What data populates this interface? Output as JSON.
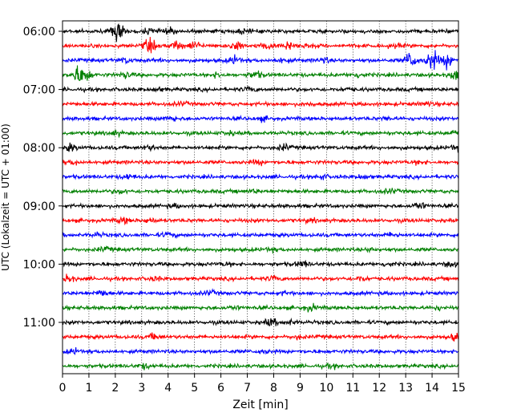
{
  "chart_data": {
    "type": "line",
    "title": "",
    "xlabel": "Zeit  [min]",
    "ylabel": "UTC (Lokalzeit = UTC + 01:00)",
    "xlim": [
      0,
      15
    ],
    "x_ticks": [
      "0",
      "1",
      "2",
      "3",
      "4",
      "5",
      "6",
      "7",
      "8",
      "9",
      "10",
      "11",
      "12",
      "13",
      "14",
      "15"
    ],
    "y_ticks": [
      "06:00",
      "07:00",
      "08:00",
      "09:00",
      "10:00",
      "11:00"
    ],
    "grid": {
      "x": true,
      "y": false,
      "style": "dotted"
    },
    "colors": [
      "#000000",
      "#ff0000",
      "#0000ff",
      "#008000"
    ],
    "series": [
      {
        "start": "06:00",
        "color": "#000000",
        "bursts": [
          [
            2.1,
            2.2
          ],
          [
            3.3,
            0.5
          ],
          [
            4.0,
            0.6
          ],
          [
            6.9,
            0.5
          ]
        ]
      },
      {
        "start": "06:15",
        "color": "#ff0000",
        "bursts": [
          [
            3.3,
            1.4
          ],
          [
            4.3,
            1.0
          ],
          [
            5.0,
            0.9
          ],
          [
            6.6,
            1.0
          ],
          [
            7.7,
            0.7
          ],
          [
            8.5,
            1.1
          ],
          [
            9.3,
            0.4
          ],
          [
            12.6,
            0.4
          ]
        ]
      },
      {
        "start": "06:30",
        "color": "#0000ff",
        "bursts": [
          [
            2.4,
            0.5
          ],
          [
            6.5,
            0.8
          ],
          [
            8.3,
            0.5
          ],
          [
            9.9,
            0.5
          ],
          [
            13.2,
            1.9
          ],
          [
            14.0,
            2.2
          ],
          [
            14.6,
            1.5
          ]
        ]
      },
      {
        "start": "06:45",
        "color": "#008000",
        "bursts": [
          [
            0.6,
            1.8
          ],
          [
            0.9,
            1.2
          ],
          [
            2.4,
            0.6
          ],
          [
            5.9,
            0.5
          ],
          [
            7.3,
            0.8
          ],
          [
            11.2,
            0.6
          ],
          [
            14.9,
            1.2
          ]
        ]
      },
      {
        "start": "07:00",
        "color": "#000000",
        "bursts": [
          [
            3.6,
            0.4
          ],
          [
            7.1,
            0.4
          ],
          [
            10.8,
            0.3
          ]
        ]
      },
      {
        "start": "07:15",
        "color": "#ff0000",
        "bursts": [
          [
            4.5,
            0.3
          ],
          [
            9.3,
            0.3
          ],
          [
            13.8,
            0.3
          ]
        ]
      },
      {
        "start": "07:30",
        "color": "#0000ff",
        "bursts": [
          [
            4.1,
            0.5
          ],
          [
            7.6,
            0.4
          ],
          [
            12.3,
            0.3
          ]
        ]
      },
      {
        "start": "07:45",
        "color": "#008000",
        "bursts": [
          [
            2.0,
            0.4
          ],
          [
            6.3,
            0.3
          ],
          [
            14.8,
            0.4
          ]
        ]
      },
      {
        "start": "08:00",
        "color": "#000000",
        "bursts": [
          [
            0.3,
            0.7
          ],
          [
            3.3,
            0.4
          ],
          [
            8.4,
            0.6
          ],
          [
            14.9,
            0.5
          ]
        ]
      },
      {
        "start": "08:15",
        "color": "#ff0000",
        "bursts": [
          [
            0.4,
            0.4
          ],
          [
            7.4,
            0.4
          ],
          [
            13.5,
            0.3
          ]
        ]
      },
      {
        "start": "08:30",
        "color": "#0000ff",
        "bursts": [
          [
            2.5,
            0.5
          ],
          [
            9.8,
            0.5
          ],
          [
            11.4,
            0.4
          ]
        ]
      },
      {
        "start": "08:45",
        "color": "#008000",
        "bursts": [
          [
            2.2,
            0.4
          ],
          [
            7.2,
            0.3
          ],
          [
            12.4,
            0.4
          ]
        ]
      },
      {
        "start": "09:00",
        "color": "#000000",
        "bursts": [
          [
            4.3,
            0.3
          ],
          [
            13.5,
            0.8
          ]
        ]
      },
      {
        "start": "09:15",
        "color": "#ff0000",
        "bursts": [
          [
            2.3,
            0.6
          ],
          [
            3.3,
            0.5
          ],
          [
            9.4,
            0.3
          ]
        ]
      },
      {
        "start": "09:30",
        "color": "#0000ff",
        "bursts": [
          [
            1.3,
            0.4
          ],
          [
            4.0,
            0.4
          ],
          [
            12.5,
            0.4
          ]
        ]
      },
      {
        "start": "09:45",
        "color": "#008000",
        "bursts": [
          [
            1.6,
            0.4
          ],
          [
            7.9,
            0.3
          ],
          [
            11.7,
            0.3
          ]
        ]
      },
      {
        "start": "10:00",
        "color": "#000000",
        "bursts": [
          [
            6.2,
            0.3
          ],
          [
            9.1,
            0.6
          ],
          [
            12.3,
            0.4
          ],
          [
            14.7,
            0.5
          ]
        ]
      },
      {
        "start": "10:15",
        "color": "#ff0000",
        "bursts": [
          [
            0.2,
            0.8
          ],
          [
            3.5,
            0.4
          ],
          [
            8.0,
            0.4
          ],
          [
            11.3,
            0.5
          ]
        ]
      },
      {
        "start": "10:30",
        "color": "#0000ff",
        "bursts": [
          [
            1.5,
            0.7
          ],
          [
            5.6,
            0.4
          ],
          [
            8.4,
            0.3
          ]
        ]
      },
      {
        "start": "10:45",
        "color": "#008000",
        "bursts": [
          [
            6.5,
            0.3
          ],
          [
            9.4,
            0.6
          ],
          [
            14.2,
            0.3
          ]
        ]
      },
      {
        "start": "11:00",
        "color": "#000000",
        "bursts": [
          [
            7.9,
            0.8
          ],
          [
            8.6,
            0.4
          ]
        ]
      },
      {
        "start": "11:15",
        "color": "#ff0000",
        "bursts": [
          [
            3.5,
            0.6
          ],
          [
            8.9,
            0.3
          ],
          [
            14.9,
            0.8
          ]
        ]
      },
      {
        "start": "11:30",
        "color": "#0000ff",
        "bursts": [
          [
            0.4,
            0.5
          ],
          [
            7.6,
            0.3
          ]
        ]
      },
      {
        "start": "11:45",
        "color": "#008000",
        "bursts": [
          [
            3.1,
            0.5
          ],
          [
            10.2,
            0.3
          ]
        ]
      }
    ]
  }
}
